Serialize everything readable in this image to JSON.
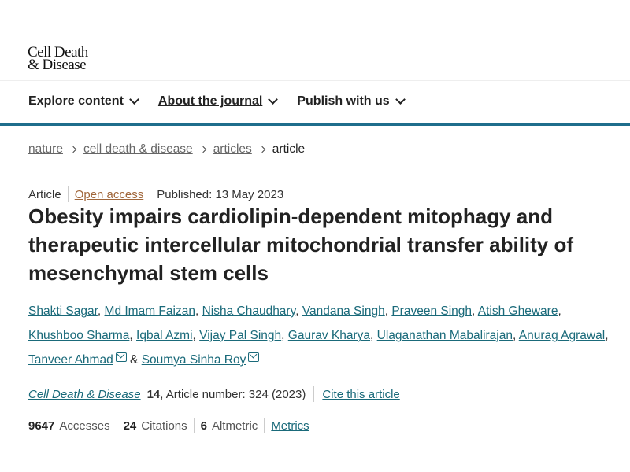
{
  "logo": {
    "line1": "Cell Death",
    "line2": "& Disease"
  },
  "nav": [
    {
      "label": "Explore content"
    },
    {
      "label": "About the journal"
    },
    {
      "label": "Publish with us"
    }
  ],
  "breadcrumb": [
    "nature",
    "cell death & disease",
    "articles",
    "article"
  ],
  "meta": {
    "type": "Article",
    "access": "Open access",
    "published": "Published: 13 May 2023"
  },
  "title": "Obesity impairs cardiolipin-dependent mitophagy and therapeutic intercellular mitochondrial transfer ability of mesenchymal stem cells",
  "authors": [
    "Shakti Sagar",
    "Md Imam Faizan",
    "Nisha Chaudhary",
    "Vandana Singh",
    "Praveen Singh",
    "Atish Gheware",
    "Khushboo Sharma",
    "Iqbal Azmi",
    "Vijay Pal Singh",
    "Gaurav Kharya",
    "Ulaganathan Mabalirajan",
    "Anurag Agrawal",
    "Tanveer Ahmad",
    "Soumya Sinha Roy"
  ],
  "authors_joiner": "&",
  "citation": {
    "journal": "Cell Death & Disease",
    "volume": "14",
    "rest": ", Article number: 324 (2023)",
    "cite_label": "Cite this article"
  },
  "stats": {
    "accesses": "9647",
    "accesses_label": "Accesses",
    "citations": "24",
    "citations_label": "Citations",
    "altmetric": "6",
    "altmetric_label": "Altmetric",
    "metrics_label": "Metrics"
  },
  "colors": {
    "link": "#1a6a7a",
    "accent_bar": "#1f6e8c",
    "open_access": "#a0663a"
  }
}
